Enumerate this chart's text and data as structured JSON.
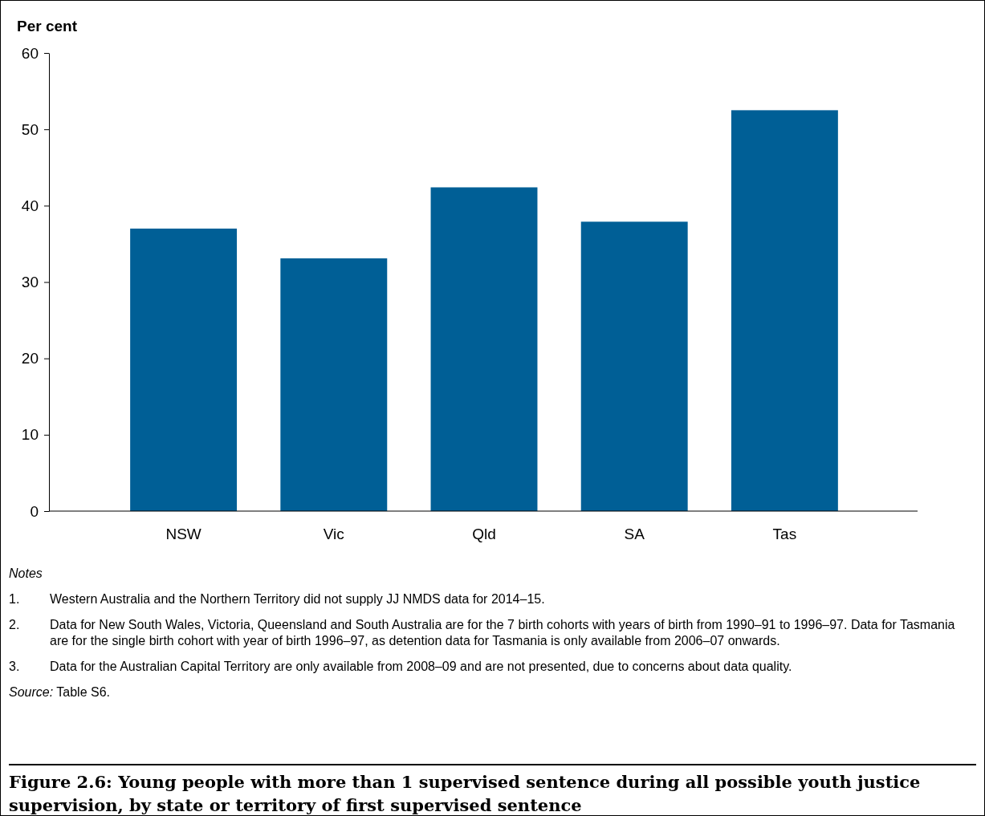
{
  "chart_data": {
    "type": "bar",
    "title": "Figure 2.6: Young people with more than 1 supervised sentence during all possible youth justice supervision, by state or territory of first supervised sentence",
    "ylabel": "Per cent",
    "categories": [
      "NSW",
      "Vic",
      "Qld",
      "SA",
      "Tas"
    ],
    "values": [
      37.0,
      33.1,
      42.4,
      37.9,
      52.5
    ],
    "color": "#005f96",
    "ylim": [
      0,
      60
    ],
    "yticks": [
      0,
      10,
      20,
      30,
      40,
      50,
      60
    ],
    "grid": false,
    "annotations": [
      "Notes",
      "1. Western Australia and the Northern Territory did not supply JJ NMDS data for 2014–15.",
      "2. Data for New South Wales, Victoria, Queensland and South Australia are for the 7 birth cohorts with years of birth from 1990–91 to 1996–97. Data for Tasmania are for the single birth cohort with year of birth 1996–97, as detention data for Tasmania is only available from 2006–07 onwards.",
      "3. Data for the Australian Capital Territory are only available from 2008–09 and are not presented, due to concerns about data quality.",
      "Source: Table S6."
    ]
  }
}
